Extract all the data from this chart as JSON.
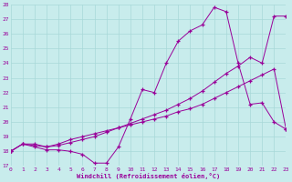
{
  "xlabel": "Windchill (Refroidissement éolien,°C)",
  "background_color": "#c8ecec",
  "grid_color": "#a8d8d8",
  "line_color": "#990099",
  "xlim": [
    0,
    23
  ],
  "ylim": [
    17,
    28
  ],
  "xticks": [
    0,
    1,
    2,
    3,
    4,
    5,
    6,
    7,
    8,
    9,
    10,
    11,
    12,
    13,
    14,
    15,
    16,
    17,
    18,
    19,
    20,
    21,
    22,
    23
  ],
  "yticks": [
    17,
    18,
    19,
    20,
    21,
    22,
    23,
    24,
    25,
    26,
    27,
    28
  ],
  "series1_x": [
    0,
    1,
    2,
    3,
    4,
    5,
    6,
    7,
    8,
    9,
    10,
    11,
    12,
    13,
    14,
    15,
    16,
    17,
    18,
    19,
    20,
    21,
    22,
    23
  ],
  "series1_y": [
    18.0,
    18.5,
    18.3,
    18.1,
    18.1,
    18.0,
    17.8,
    17.2,
    17.2,
    18.3,
    20.2,
    22.2,
    22.0,
    24.0,
    25.5,
    26.2,
    26.6,
    27.8,
    27.5,
    24.0,
    21.2,
    21.3,
    20.0,
    19.5
  ],
  "series2_x": [
    0,
    1,
    2,
    3,
    4,
    5,
    6,
    7,
    8,
    9,
    10,
    11,
    12,
    13,
    14,
    15,
    16,
    17,
    18,
    19,
    20,
    21,
    22,
    23
  ],
  "series2_y": [
    18.0,
    18.5,
    18.4,
    18.3,
    18.4,
    18.6,
    18.8,
    19.0,
    19.3,
    19.6,
    19.9,
    20.2,
    20.5,
    20.8,
    21.2,
    21.6,
    22.1,
    22.7,
    23.3,
    23.8,
    24.4,
    24.0,
    27.2,
    27.2
  ],
  "series3_x": [
    0,
    1,
    2,
    3,
    4,
    5,
    6,
    7,
    8,
    9,
    10,
    11,
    12,
    13,
    14,
    15,
    16,
    17,
    18,
    19,
    20,
    21,
    22,
    23
  ],
  "series3_y": [
    18.0,
    18.5,
    18.5,
    18.3,
    18.5,
    18.8,
    19.0,
    19.2,
    19.4,
    19.6,
    19.8,
    20.0,
    20.2,
    20.4,
    20.7,
    20.9,
    21.2,
    21.6,
    22.0,
    22.4,
    22.8,
    23.2,
    23.6,
    19.5
  ]
}
